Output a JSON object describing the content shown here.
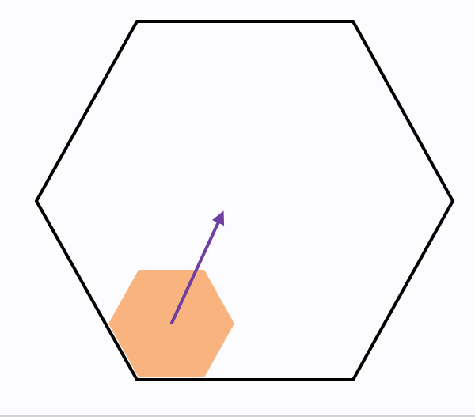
{
  "scene": {
    "background_color": "#fcfbfe",
    "arena": {
      "shape": "hexagon",
      "stroke_color": "#000000",
      "fill": "none"
    },
    "player": {
      "shape": "hexagon",
      "fill_color": "#f8b37f"
    },
    "direction_arrow": {
      "color": "#7040a0",
      "heading_degrees": 67
    },
    "divider_color": "#d4d4d4"
  }
}
